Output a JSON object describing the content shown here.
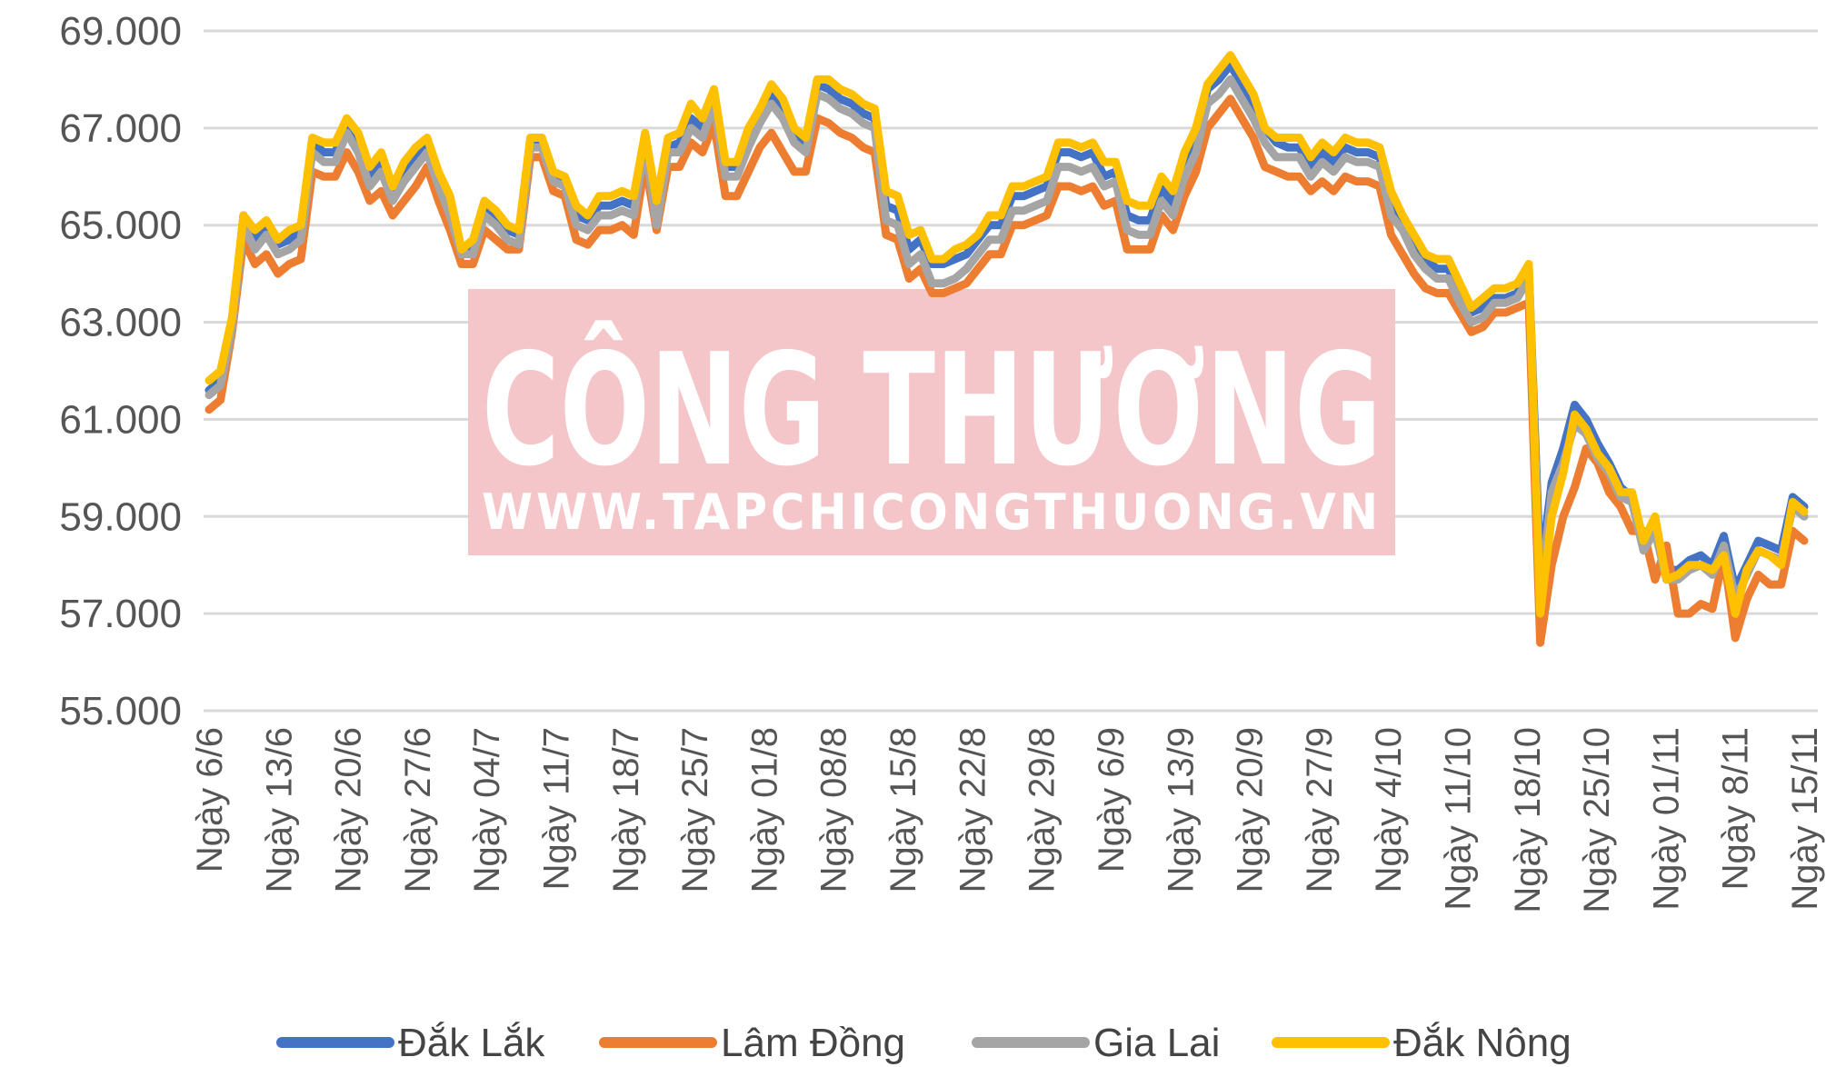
{
  "watermark": {
    "title": "CÔNG THƯƠNG",
    "url": "WWW.TAPCHICONGTHUONG.VN",
    "color": "#f5c6c9"
  },
  "chart_data": {
    "type": "line",
    "ylim": [
      55000,
      69000
    ],
    "yticks": [
      55000,
      57000,
      59000,
      61000,
      63000,
      65000,
      67000,
      69000
    ],
    "ytick_labels": [
      "55.000",
      "57.000",
      "59.000",
      "61.000",
      "63.000",
      "65.000",
      "67.000",
      "69.000"
    ],
    "grid": true,
    "legend_position": "bottom",
    "x_labels": [
      "Ngày 6/6",
      "Ngày 13/6",
      "Ngày 20/6",
      "Ngày 27/6",
      "Ngày 04/7",
      "Ngày 11/7",
      "Ngày 18/7",
      "Ngày 25/7",
      "Ngày 01/8",
      "Ngày 08/8",
      "Ngày 15/8",
      "Ngày 22/8",
      "Ngày 29/8",
      "Ngày 6/9",
      "Ngày 13/9",
      "Ngày 20/9",
      "Ngày 27/9",
      "Ngày 4/10",
      "Ngày 11/10",
      "Ngày 18/10",
      "Ngày 25/10",
      "Ngày 01/11",
      "Ngày 8/11",
      "Ngày 15/11"
    ],
    "series": [
      {
        "name": "Đắk Lắk",
        "color": "#4472c4",
        "values": [
          61600,
          61800,
          63000,
          65200,
          64700,
          65000,
          64600,
          64700,
          64900,
          66700,
          66500,
          66500,
          67100,
          66700,
          66000,
          66300,
          65700,
          66100,
          66400,
          66700,
          66000,
          65400,
          64500,
          64600,
          65400,
          65200,
          64900,
          64800,
          66700,
          66700,
          66000,
          65900,
          65200,
          65100,
          65400,
          65400,
          65500,
          65400,
          66800,
          65100,
          66600,
          66700,
          67200,
          67000,
          67700,
          66200,
          66200,
          66800,
          67300,
          67700,
          67400,
          66900,
          66700,
          67900,
          67800,
          67600,
          67500,
          67300,
          67200,
          65400,
          65300,
          64500,
          64700,
          64200,
          64200,
          64300,
          64400,
          64700,
          65000,
          65000,
          65600,
          65600,
          65700,
          65800,
          66500,
          66500,
          66400,
          66500,
          66000,
          66100,
          65200,
          65100,
          65100,
          65800,
          65400,
          66300,
          66800,
          67800,
          68000,
          68300,
          67900,
          67500,
          67000,
          66700,
          66600,
          66600,
          66200,
          66500,
          66300,
          66600,
          66500,
          66500,
          66400,
          65500,
          65100,
          64600,
          64300,
          64100,
          64100,
          63600,
          63200,
          63300,
          63500,
          63500,
          63600,
          64100,
          57800,
          59700,
          60400,
          61300,
          61000,
          60500,
          60100,
          59600,
          59400,
          58500,
          58800,
          57900,
          57900,
          58100,
          58200,
          58000,
          58600,
          57500,
          58000,
          58500,
          58400,
          58300,
          59400,
          59200
        ]
      },
      {
        "name": "Lâm Đồng",
        "color": "#ed7d31",
        "values": [
          61200,
          61400,
          62800,
          64700,
          64200,
          64400,
          64000,
          64200,
          64300,
          66100,
          66000,
          66000,
          66500,
          66100,
          65500,
          65700,
          65200,
          65500,
          65800,
          66200,
          65500,
          64900,
          64200,
          64200,
          64900,
          64700,
          64500,
          64500,
          66400,
          66400,
          65700,
          65600,
          64700,
          64600,
          64900,
          64900,
          65000,
          64800,
          66300,
          64900,
          66200,
          66200,
          66700,
          66500,
          67100,
          65600,
          65600,
          66100,
          66600,
          66900,
          66500,
          66100,
          66100,
          67200,
          67100,
          66900,
          66800,
          66600,
          66500,
          64800,
          64700,
          63900,
          64100,
          63600,
          63600,
          63700,
          63800,
          64100,
          64400,
          64400,
          65000,
          65000,
          65100,
          65200,
          65800,
          65800,
          65700,
          65800,
          65400,
          65500,
          64500,
          64500,
          64500,
          65200,
          64900,
          65600,
          66100,
          67000,
          67300,
          67600,
          67200,
          66800,
          66200,
          66100,
          66000,
          66000,
          65700,
          65900,
          65700,
          66000,
          65900,
          65900,
          65800,
          64800,
          64400,
          64000,
          63700,
          63600,
          63600,
          63200,
          62800,
          62900,
          63200,
          63200,
          63300,
          63400,
          56400,
          58000,
          59000,
          59600,
          60400,
          60100,
          59500,
          59200,
          58700,
          58700,
          57700,
          58400,
          57000,
          57000,
          57200,
          57100,
          58200,
          56500,
          57300,
          57800,
          57600,
          57600,
          58700,
          58500
        ]
      },
      {
        "name": "Gia Lai",
        "color": "#a5a5a5",
        "values": [
          61500,
          61700,
          62900,
          65000,
          64500,
          64800,
          64400,
          64500,
          64700,
          66500,
          66300,
          66300,
          66900,
          66500,
          65800,
          66100,
          65500,
          65900,
          66200,
          66500,
          65800,
          65200,
          64400,
          64400,
          65200,
          65000,
          64700,
          64600,
          66600,
          66600,
          65900,
          65800,
          65000,
          64900,
          65200,
          65200,
          65300,
          65200,
          66700,
          65000,
          66500,
          66500,
          67000,
          66800,
          67500,
          66000,
          66000,
          66600,
          67100,
          67500,
          67200,
          66700,
          66500,
          67700,
          67600,
          67400,
          67300,
          67100,
          67000,
          65100,
          65000,
          64200,
          64400,
          63800,
          63800,
          63900,
          64100,
          64400,
          64700,
          64700,
          65300,
          65300,
          65400,
          65500,
          66200,
          66200,
          66100,
          66200,
          65800,
          65900,
          64900,
          64800,
          64800,
          65500,
          65200,
          66000,
          66500,
          67500,
          67700,
          68000,
          67600,
          67200,
          66700,
          66400,
          66400,
          66400,
          66000,
          66300,
          66100,
          66400,
          66300,
          66300,
          66200,
          65200,
          64900,
          64400,
          64100,
          63900,
          63900,
          63400,
          63000,
          63100,
          63400,
          63400,
          63500,
          63900,
          57300,
          59500,
          60100,
          60900,
          60700,
          60200,
          59900,
          59400,
          59300,
          58300,
          58700,
          57700,
          57700,
          57900,
          58000,
          57800,
          58400,
          57300,
          57800,
          58300,
          58200,
          58100,
          59200,
          59000
        ]
      },
      {
        "name": "Đắk Nông",
        "color": "#ffc000",
        "values": [
          61800,
          62000,
          63100,
          65200,
          64900,
          65100,
          64700,
          64900,
          65000,
          66800,
          66700,
          66700,
          67200,
          66900,
          66200,
          66500,
          65800,
          66300,
          66600,
          66800,
          66100,
          65600,
          64500,
          64700,
          65500,
          65300,
          65000,
          64900,
          66800,
          66800,
          66100,
          66000,
          65400,
          65200,
          65600,
          65600,
          65700,
          65600,
          66900,
          65500,
          66800,
          66900,
          67500,
          67200,
          67800,
          66300,
          66300,
          67000,
          67400,
          67900,
          67600,
          67000,
          66800,
          68000,
          68000,
          67800,
          67700,
          67500,
          67400,
          65700,
          65600,
          64800,
          64900,
          64300,
          64300,
          64500,
          64600,
          64800,
          65200,
          65200,
          65800,
          65800,
          65900,
          66000,
          66700,
          66700,
          66600,
          66700,
          66300,
          66300,
          65500,
          65400,
          65400,
          66000,
          65700,
          66500,
          67000,
          67900,
          68200,
          68500,
          68100,
          67700,
          67000,
          66800,
          66800,
          66800,
          66400,
          66700,
          66500,
          66800,
          66700,
          66700,
          66600,
          65700,
          65200,
          64800,
          64400,
          64300,
          64300,
          63800,
          63300,
          63500,
          63700,
          63700,
          63800,
          64200,
          57000,
          59000,
          59900,
          61100,
          60800,
          60300,
          60000,
          59500,
          59500,
          58500,
          59000,
          57700,
          57800,
          58000,
          58000,
          57900,
          58200,
          57000,
          57900,
          58300,
          58200,
          58000,
          59300,
          59100
        ]
      }
    ]
  }
}
